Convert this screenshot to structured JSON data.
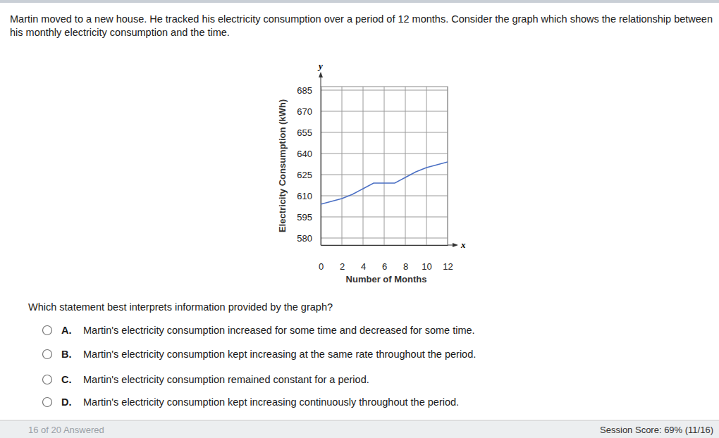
{
  "header": {
    "question": "Martin moved to a new house. He tracked his electricity consumption over a period of 12 months. Consider the graph which shows the relationship between his monthly electricity consumption and the time."
  },
  "chart_data": {
    "type": "line",
    "x_axis_name": "x",
    "y_axis_name": "y",
    "x_label": "Number of Months",
    "y_label": "Electricity Consumption (kWh)",
    "x": [
      0,
      1,
      2,
      3,
      4,
      5,
      6,
      7,
      8,
      9,
      10,
      11,
      12
    ],
    "values": [
      604,
      606,
      608,
      611,
      615,
      619,
      619,
      619,
      623,
      627,
      630,
      632,
      634
    ],
    "color": "#4a6fc4",
    "xlim": [
      0,
      12
    ],
    "ylim": [
      575,
      687.5
    ],
    "xticks": [
      0,
      2,
      4,
      6,
      8,
      10,
      12
    ],
    "yticks": [
      580,
      595,
      610,
      625,
      640,
      655,
      670,
      685
    ],
    "grid": true
  },
  "prompt": "Which statement best interprets information provided by the graph?",
  "options": [
    {
      "letter": "A.",
      "text": "Martin's electricity consumption increased for some time and decreased for some time."
    },
    {
      "letter": "B.",
      "text": "Martin's electricity consumption kept increasing at the same rate throughout the period."
    },
    {
      "letter": "C.",
      "text": "Martin's electricity consumption remained constant for a period."
    },
    {
      "letter": "D.",
      "text": "Martin's electricity consumption kept increasing continuously throughout the period."
    }
  ],
  "footer": {
    "progress": "16 of 20 Answered",
    "score": "Session Score: 69% (11/16)"
  }
}
